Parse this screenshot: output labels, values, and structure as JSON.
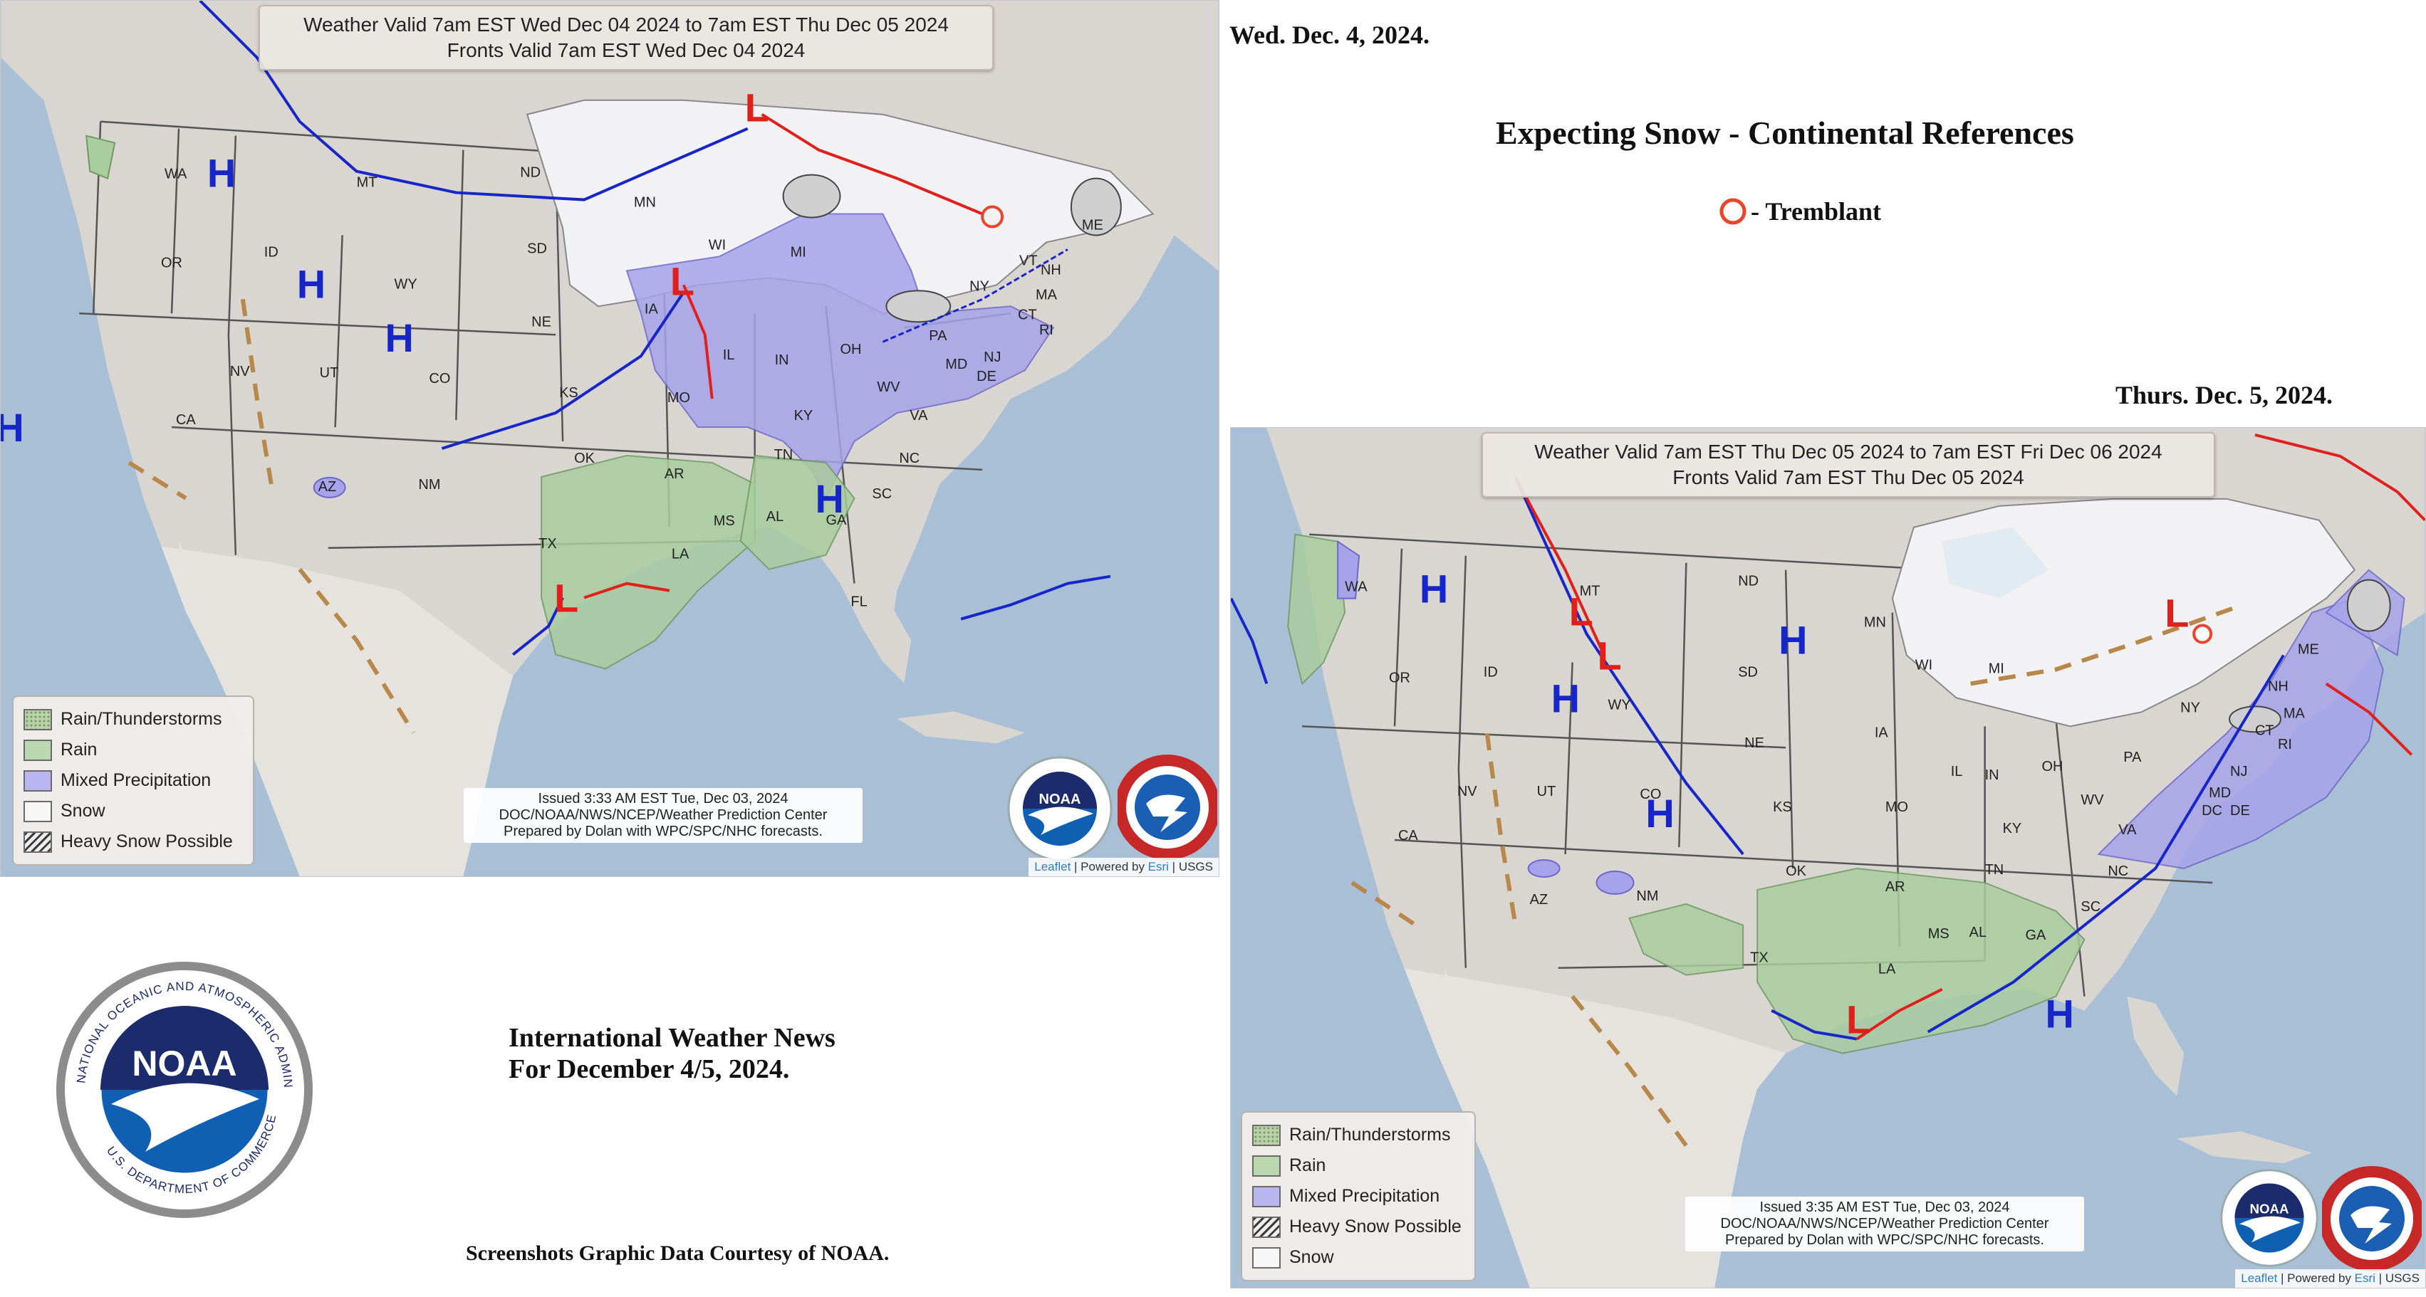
{
  "page": {
    "date_top": "Wed. Dec. 4, 2024.",
    "heading": "Expecting Snow - Continental References",
    "tremblant_label": "- Tremblant",
    "date_bottom": "Thurs. Dec. 5, 2024.",
    "news_line1": "International Weather News",
    "news_line2": "For December 4/5, 2024.",
    "credit": "Screenshots Graphic Data Courtesy of NOAA."
  },
  "legend": {
    "rain_thunder": "Rain/Thunderstorms",
    "rain": "Rain",
    "mixed": "Mixed Precipitation",
    "snow": "Snow",
    "heavy_snow": "Heavy Snow Possible"
  },
  "map1": {
    "valid_line1": "Weather Valid 7am EST Wed Dec 04 2024 to 7am EST Thu Dec 05 2024",
    "valid_line2": "Fronts Valid 7am EST Wed Dec 04 2024",
    "issued_line1": "Issued  3:33 AM EST Tue, Dec 03, 2024",
    "issued_line2": "DOC/NOAA/NWS/NCEP/Weather Prediction Center",
    "issued_line3": "Prepared by Dolan with WPC/SPC/NHC forecasts.",
    "states": [
      "WA",
      "MT",
      "ND",
      "MN",
      "OR",
      "ID",
      "SD",
      "WI",
      "MI",
      "NY",
      "VT",
      "NH",
      "ME",
      "MA",
      "CT",
      "RI",
      "WY",
      "NE",
      "IA",
      "IL",
      "IN",
      "OH",
      "PA",
      "NJ",
      "MD",
      "DE",
      "NV",
      "UT",
      "CO",
      "KS",
      "MO",
      "KY",
      "WV",
      "VA",
      "CA",
      "OK",
      "AR",
      "TN",
      "NC",
      "SC",
      "AZ",
      "NM",
      "TX",
      "MS",
      "AL",
      "GA",
      "LA",
      "FL"
    ],
    "highs": 5,
    "lows": 3
  },
  "map2": {
    "valid_line1": "Weather Valid 7am EST Thu Dec 05 2024 to 7am EST Fri Dec 06 2024",
    "valid_line2": "Fronts Valid 7am EST Thu Dec 05 2024",
    "issued_line1": "Issued  3:35 AM EST Tue, Dec 03, 2024",
    "issued_line2": "DOC/NOAA/NWS/NCEP/Weather Prediction Center",
    "issued_line3": "Prepared by Dolan with WPC/SPC/NHC forecasts.",
    "states": [
      "WA",
      "MT",
      "ND",
      "MN",
      "OR",
      "ID",
      "SD",
      "WI",
      "MI",
      "NY",
      "ME",
      "NH",
      "MA",
      "CT",
      "RI",
      "WY",
      "NE",
      "IA",
      "IL",
      "IN",
      "OH",
      "PA",
      "NJ",
      "MD",
      "DE",
      "DC",
      "NV",
      "UT",
      "CO",
      "KS",
      "MO",
      "KY",
      "WV",
      "VA",
      "CA",
      "OK",
      "AR",
      "TN",
      "NC",
      "SC",
      "AZ",
      "NM",
      "TX",
      "MS",
      "AL",
      "GA",
      "LA"
    ],
    "highs": 5,
    "lows": 4
  },
  "attribution": {
    "leaflet": "Leaflet",
    "sep1": " | Powered by ",
    "esri": "Esri",
    "sep2": " | USGS"
  },
  "symbols": {
    "high": "H",
    "low": "L"
  },
  "logos": {
    "noaa_text": "NOAA",
    "noaa_ring_text": "NATIONAL OCEANIC AND ATMOSPHERIC ADMINISTRATION",
    "noaa_ring_bottom": "U.S. DEPARTMENT OF COMMERCE",
    "nws_ring_text": "NATIONAL WEATHER SERVICE"
  },
  "colors": {
    "ocean": "#a8bfd6",
    "land": "#d9d5d0",
    "mexico": "#e6e3df",
    "snow": "#f2f2f4",
    "mixed": "#a7a3ea",
    "rain": "#a9cd9e",
    "cold_front": "#1726c9",
    "warm_front": "#e0201b",
    "trough": "#b8874a",
    "tremblant_marker": "#e8452a"
  }
}
